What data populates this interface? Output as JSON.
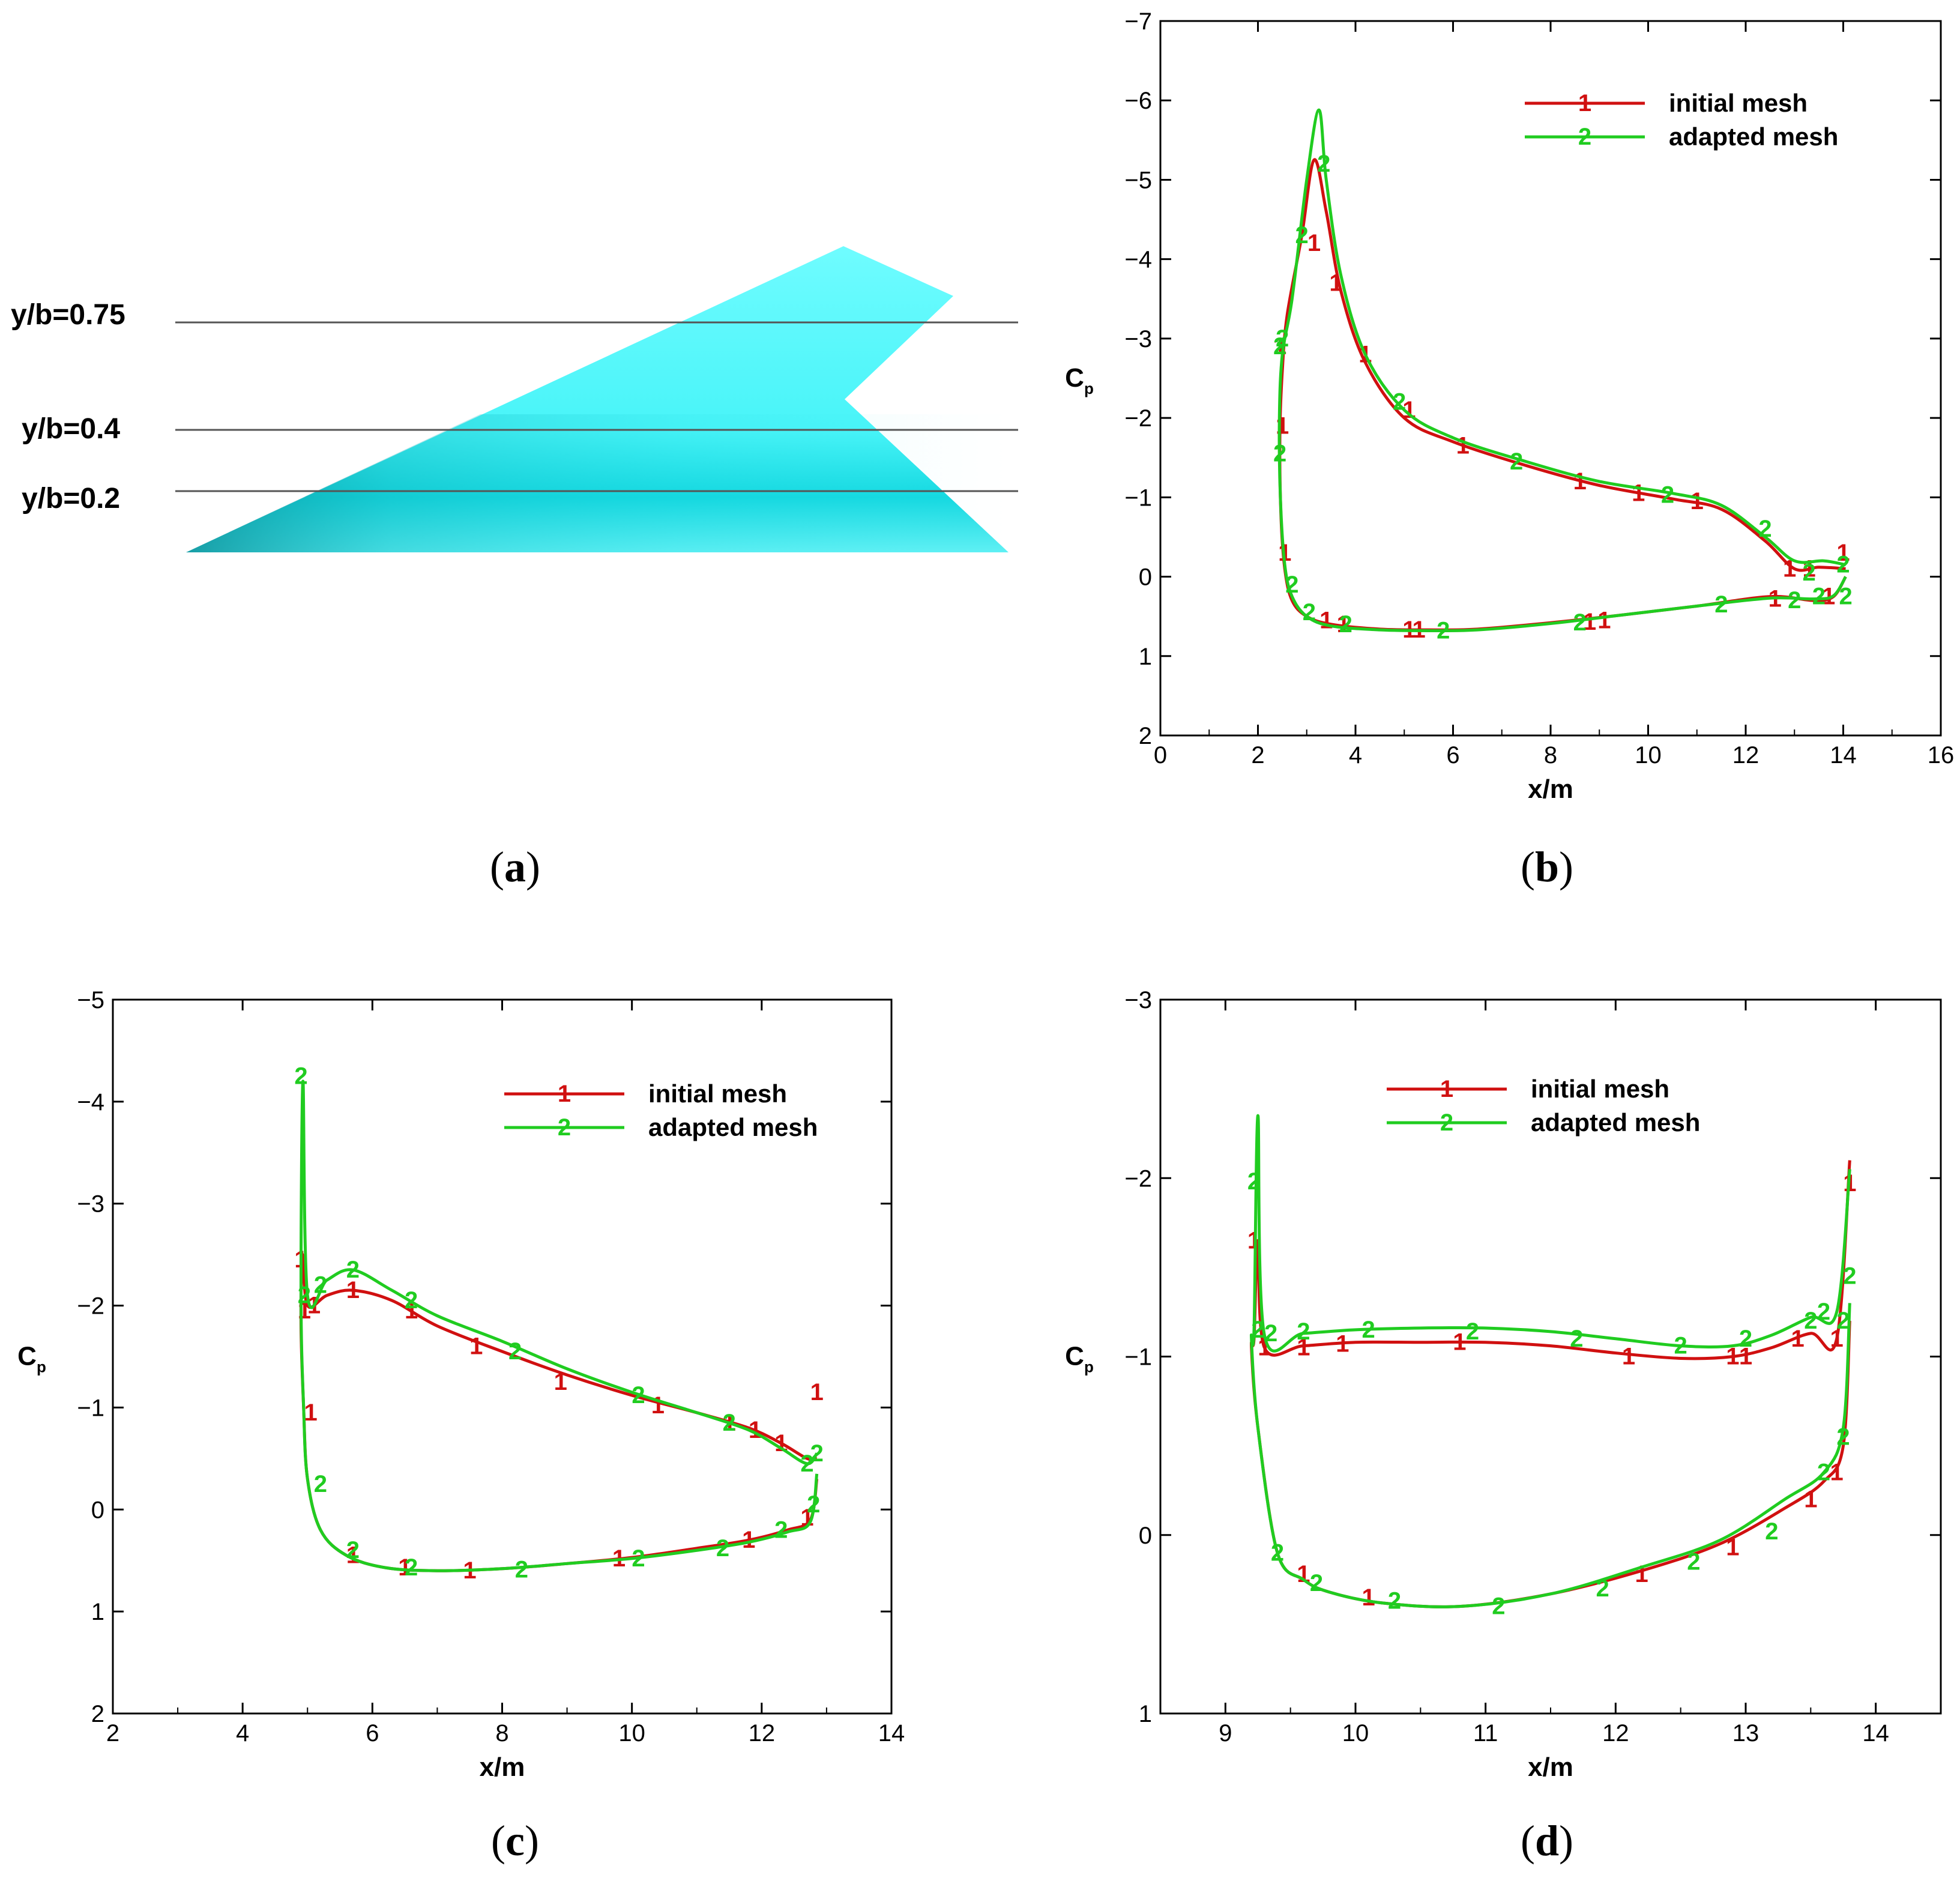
{
  "colors": {
    "initial": "#d01010",
    "adapted": "#20cc20",
    "wing_light": "#5ff7fb",
    "wing_dark": "#11aeb6",
    "section_line": "#555555"
  },
  "panel_a": {
    "label": "(a)",
    "label_letter": "a",
    "sections": [
      "y/b=0.75",
      "y/b=0.4",
      "y/b=0.2"
    ]
  },
  "chart_data": [
    {
      "panel": "b",
      "label": "(b)",
      "label_letter": "b",
      "type": "line",
      "title": "",
      "xlabel": "x/m",
      "ylabel": "C",
      "ylabel_sub": "p",
      "xlim": [
        0,
        16
      ],
      "ylim": [
        2,
        -7
      ],
      "xticks": [
        0,
        2,
        4,
        6,
        8,
        10,
        12,
        14,
        16
      ],
      "yticks": [
        -7,
        -6,
        -5,
        -4,
        -3,
        -2,
        -1,
        0,
        1,
        2
      ],
      "legend": [
        "initial mesh",
        "adapted mesh"
      ],
      "series": [
        {
          "name": "initial mesh",
          "marker": "1",
          "x": [
            14.05,
            13.5,
            13.0,
            12.4,
            11.5,
            10.5,
            9.0,
            7.5,
            6.0,
            5.0,
            4.2,
            3.7,
            3.4,
            3.15,
            2.9,
            2.6,
            2.5,
            2.45,
            2.47,
            2.55,
            2.7,
            3.0,
            3.5,
            4.5,
            5.5,
            6.5,
            8.0,
            9.5,
            11.0,
            12.5,
            13.4,
            13.8,
            14.05
          ],
          "y": [
            -0.1,
            -0.12,
            -0.1,
            -0.45,
            -0.85,
            -0.98,
            -1.15,
            -1.4,
            -1.7,
            -2.0,
            -2.7,
            -3.6,
            -4.6,
            -5.25,
            -4.3,
            -3.3,
            -2.6,
            -1.8,
            -0.8,
            -0.1,
            0.3,
            0.5,
            0.6,
            0.66,
            0.67,
            0.66,
            0.58,
            0.48,
            0.37,
            0.25,
            0.3,
            0.25,
            0.0
          ],
          "markers": [
            [
              3.15,
              -4.2
            ],
            [
              2.45,
              -2.9
            ],
            [
              2.5,
              -1.9
            ],
            [
              2.55,
              -0.3
            ],
            [
              3.6,
              -3.7
            ],
            [
              4.2,
              -2.8
            ],
            [
              5.1,
              -2.1
            ],
            [
              6.2,
              -1.65
            ],
            [
              8.6,
              -1.2
            ],
            [
              9.8,
              -1.05
            ],
            [
              11.0,
              -0.95
            ],
            [
              12.9,
              -0.1
            ],
            [
              13.3,
              -0.1
            ],
            [
              14.0,
              -0.3
            ],
            [
              3.4,
              0.55
            ],
            [
              3.75,
              0.6
            ],
            [
              5.1,
              0.67
            ],
            [
              5.3,
              0.67
            ],
            [
              8.8,
              0.57
            ],
            [
              9.1,
              0.55
            ],
            [
              12.6,
              0.28
            ],
            [
              13.7,
              0.25
            ]
          ]
        },
        {
          "name": "adapted mesh",
          "marker": "2",
          "x": [
            14.05,
            13.6,
            13.0,
            12.4,
            11.5,
            10.5,
            9.0,
            7.5,
            6.0,
            5.0,
            4.2,
            3.7,
            3.4,
            3.25,
            3.0,
            2.7,
            2.5,
            2.44,
            2.46,
            2.55,
            2.7,
            3.0,
            3.5,
            4.5,
            5.5,
            6.5,
            8.0,
            9.5,
            11.0,
            12.5,
            13.4,
            13.8,
            14.05
          ],
          "y": [
            -0.15,
            -0.2,
            -0.2,
            -0.5,
            -0.9,
            -1.05,
            -1.2,
            -1.45,
            -1.75,
            -2.1,
            -2.8,
            -3.8,
            -5.0,
            -5.88,
            -5.0,
            -3.5,
            -2.8,
            -2.0,
            -1.0,
            -0.15,
            0.25,
            0.5,
            0.62,
            0.67,
            0.68,
            0.67,
            0.59,
            0.48,
            0.37,
            0.27,
            0.28,
            0.24,
            0.0
          ],
          "markers": [
            [
              3.35,
              -5.2
            ],
            [
              2.9,
              -4.3
            ],
            [
              2.5,
              -3.0
            ],
            [
              2.45,
              -2.9
            ],
            [
              2.45,
              -1.55
            ],
            [
              2.7,
              0.1
            ],
            [
              3.05,
              0.45
            ],
            [
              3.8,
              0.6
            ],
            [
              4.9,
              -2.2
            ],
            [
              5.8,
              0.68
            ],
            [
              7.3,
              -1.45
            ],
            [
              8.6,
              0.58
            ],
            [
              10.4,
              -1.03
            ],
            [
              11.5,
              0.35
            ],
            [
              12.4,
              -0.6
            ],
            [
              13.0,
              0.3
            ],
            [
              13.3,
              -0.05
            ],
            [
              13.5,
              0.25
            ],
            [
              14.0,
              -0.15
            ],
            [
              14.05,
              0.25
            ]
          ]
        }
      ]
    },
    {
      "panel": "c",
      "label": "(c)",
      "label_letter": "c",
      "type": "line",
      "title": "",
      "xlabel": "x/m",
      "ylabel": "C",
      "ylabel_sub": "p",
      "xlim": [
        2,
        14
      ],
      "ylim": [
        2,
        -5
      ],
      "xticks": [
        2,
        4,
        6,
        8,
        10,
        12,
        14
      ],
      "yticks": [
        -5,
        -4,
        -3,
        -2,
        -1,
        0,
        1,
        2
      ],
      "legend": [
        "initial mesh",
        "adapted mesh"
      ],
      "series": [
        {
          "name": "initial mesh",
          "marker": "1",
          "x": [
            12.85,
            12.7,
            12.3,
            11.8,
            11.0,
            10.0,
            9.0,
            8.0,
            7.0,
            6.3,
            5.7,
            5.3,
            5.0,
            4.92,
            4.9,
            4.94,
            5.0,
            5.2,
            5.6,
            6.2,
            7.0,
            8.0,
            9.0,
            10.0,
            11.0,
            11.8,
            12.4,
            12.75,
            12.85
          ],
          "y": [
            -0.5,
            -0.5,
            -0.65,
            -0.8,
            -0.95,
            -1.12,
            -1.32,
            -1.55,
            -1.8,
            -2.05,
            -2.15,
            -2.1,
            -2.0,
            -2.5,
            -1.8,
            -1.0,
            -0.3,
            0.2,
            0.45,
            0.57,
            0.6,
            0.58,
            0.53,
            0.47,
            0.38,
            0.3,
            0.2,
            0.1,
            -0.3
          ],
          "markers": [
            [
              4.9,
              -2.45
            ],
            [
              4.95,
              -1.95
            ],
            [
              5.1,
              -2.0
            ],
            [
              5.7,
              -2.15
            ],
            [
              6.6,
              -1.95
            ],
            [
              7.6,
              -1.6
            ],
            [
              8.9,
              -1.25
            ],
            [
              10.4,
              -1.02
            ],
            [
              11.5,
              -0.85
            ],
            [
              11.9,
              -0.78
            ],
            [
              12.3,
              -0.65
            ],
            [
              12.85,
              -1.15
            ],
            [
              5.05,
              -0.95
            ],
            [
              5.7,
              0.45
            ],
            [
              6.5,
              0.57
            ],
            [
              7.5,
              0.6
            ],
            [
              9.8,
              0.48
            ],
            [
              11.8,
              0.3
            ],
            [
              12.7,
              0.08
            ]
          ]
        },
        {
          "name": "adapted mesh",
          "marker": "2",
          "x": [
            12.85,
            12.7,
            12.3,
            11.8,
            11.0,
            10.0,
            9.0,
            8.0,
            7.0,
            6.3,
            5.7,
            5.3,
            5.0,
            4.93,
            4.9,
            4.94,
            5.0,
            5.2,
            5.6,
            6.2,
            7.0,
            8.0,
            9.0,
            10.0,
            11.0,
            11.8,
            12.4,
            12.75,
            12.85
          ],
          "y": [
            -0.55,
            -0.45,
            -0.6,
            -0.78,
            -0.95,
            -1.15,
            -1.38,
            -1.65,
            -1.9,
            -2.15,
            -2.35,
            -2.25,
            -2.1,
            -4.2,
            -2.1,
            -1.0,
            -0.3,
            0.2,
            0.45,
            0.57,
            0.6,
            0.58,
            0.53,
            0.48,
            0.4,
            0.32,
            0.22,
            0.12,
            -0.35
          ],
          "markers": [
            [
              4.9,
              -4.25
            ],
            [
              4.95,
              -2.1
            ],
            [
              5.2,
              -2.2
            ],
            [
              5.7,
              -2.35
            ],
            [
              6.6,
              -2.05
            ],
            [
              8.2,
              -1.55
            ],
            [
              10.1,
              -1.12
            ],
            [
              11.5,
              -0.85
            ],
            [
              12.7,
              -0.45
            ],
            [
              12.85,
              -0.55
            ],
            [
              5.2,
              -0.25
            ],
            [
              5.7,
              0.4
            ],
            [
              6.6,
              0.57
            ],
            [
              8.3,
              0.59
            ],
            [
              10.1,
              0.48
            ],
            [
              11.4,
              0.38
            ],
            [
              12.3,
              0.2
            ],
            [
              12.8,
              -0.05
            ]
          ]
        }
      ]
    },
    {
      "panel": "d",
      "label": "(d)",
      "label_letter": "d",
      "type": "line",
      "title": "",
      "xlabel": "x/m",
      "ylabel": "C",
      "ylabel_sub": "p",
      "xlim": [
        8.5,
        14.5
      ],
      "ylim": [
        1,
        -3
      ],
      "xticks": [
        9,
        10,
        11,
        12,
        13,
        14
      ],
      "yticks": [
        -3,
        -2,
        -1,
        0,
        1
      ],
      "legend": [
        "initial mesh",
        "adapted mesh"
      ],
      "series": [
        {
          "name": "initial mesh",
          "marker": "1",
          "x": [
            13.8,
            13.7,
            13.5,
            13.2,
            12.9,
            12.5,
            12.0,
            11.5,
            11.0,
            10.5,
            10.0,
            9.6,
            9.3,
            9.25,
            9.22,
            9.2,
            9.25,
            9.4,
            9.6,
            9.8,
            10.2,
            10.8,
            11.5,
            12.2,
            12.8,
            13.3,
            13.6,
            13.75,
            13.8
          ],
          "y": [
            -2.1,
            -1.1,
            -1.13,
            -1.05,
            -1.0,
            -0.99,
            -1.02,
            -1.06,
            -1.08,
            -1.08,
            -1.08,
            -1.06,
            -1.05,
            -1.65,
            -1.1,
            -1.05,
            -0.6,
            0.1,
            0.25,
            0.32,
            0.38,
            0.4,
            0.33,
            0.2,
            0.05,
            -0.15,
            -0.3,
            -0.5,
            -1.2
          ],
          "markers": [
            [
              9.22,
              -1.65
            ],
            [
              9.3,
              -1.05
            ],
            [
              9.6,
              -1.05
            ],
            [
              9.9,
              -1.07
            ],
            [
              10.8,
              -1.08
            ],
            [
              12.1,
              -1.0
            ],
            [
              12.9,
              -1.0
            ],
            [
              13.0,
              -1.0
            ],
            [
              13.4,
              -1.1
            ],
            [
              13.7,
              -1.1
            ],
            [
              13.8,
              -1.97
            ],
            [
              9.6,
              0.22
            ],
            [
              10.1,
              0.35
            ],
            [
              12.2,
              0.22
            ],
            [
              12.9,
              0.07
            ],
            [
              13.5,
              -0.2
            ],
            [
              13.7,
              -0.35
            ]
          ]
        },
        {
          "name": "adapted mesh",
          "marker": "2",
          "x": [
            13.8,
            13.7,
            13.5,
            13.2,
            12.9,
            12.5,
            12.0,
            11.5,
            11.0,
            10.5,
            10.0,
            9.6,
            9.3,
            9.25,
            9.22,
            9.2,
            9.25,
            9.4,
            9.6,
            9.8,
            10.2,
            10.8,
            11.5,
            12.2,
            12.8,
            13.3,
            13.6,
            13.75,
            13.8
          ],
          "y": [
            -2.05,
            -1.25,
            -1.22,
            -1.12,
            -1.06,
            -1.06,
            -1.1,
            -1.14,
            -1.16,
            -1.16,
            -1.15,
            -1.13,
            -1.12,
            -2.35,
            -1.15,
            -1.1,
            -0.6,
            0.1,
            0.25,
            0.32,
            0.38,
            0.4,
            0.33,
            0.18,
            0.03,
            -0.2,
            -0.35,
            -0.6,
            -1.3
          ],
          "markers": [
            [
              9.22,
              -1.98
            ],
            [
              9.25,
              -1.15
            ],
            [
              9.35,
              -1.13
            ],
            [
              9.6,
              -1.14
            ],
            [
              10.1,
              -1.15
            ],
            [
              10.9,
              -1.14
            ],
            [
              11.7,
              -1.1
            ],
            [
              12.5,
              -1.06
            ],
            [
              13.0,
              -1.1
            ],
            [
              13.5,
              -1.2
            ],
            [
              13.6,
              -1.25
            ],
            [
              13.75,
              -1.2
            ],
            [
              13.8,
              -1.45
            ],
            [
              9.4,
              0.1
            ],
            [
              9.7,
              0.27
            ],
            [
              10.3,
              0.37
            ],
            [
              11.1,
              0.4
            ],
            [
              11.9,
              0.3
            ],
            [
              12.6,
              0.15
            ],
            [
              13.2,
              -0.02
            ],
            [
              13.6,
              -0.35
            ],
            [
              13.75,
              -0.55
            ]
          ]
        }
      ]
    }
  ]
}
